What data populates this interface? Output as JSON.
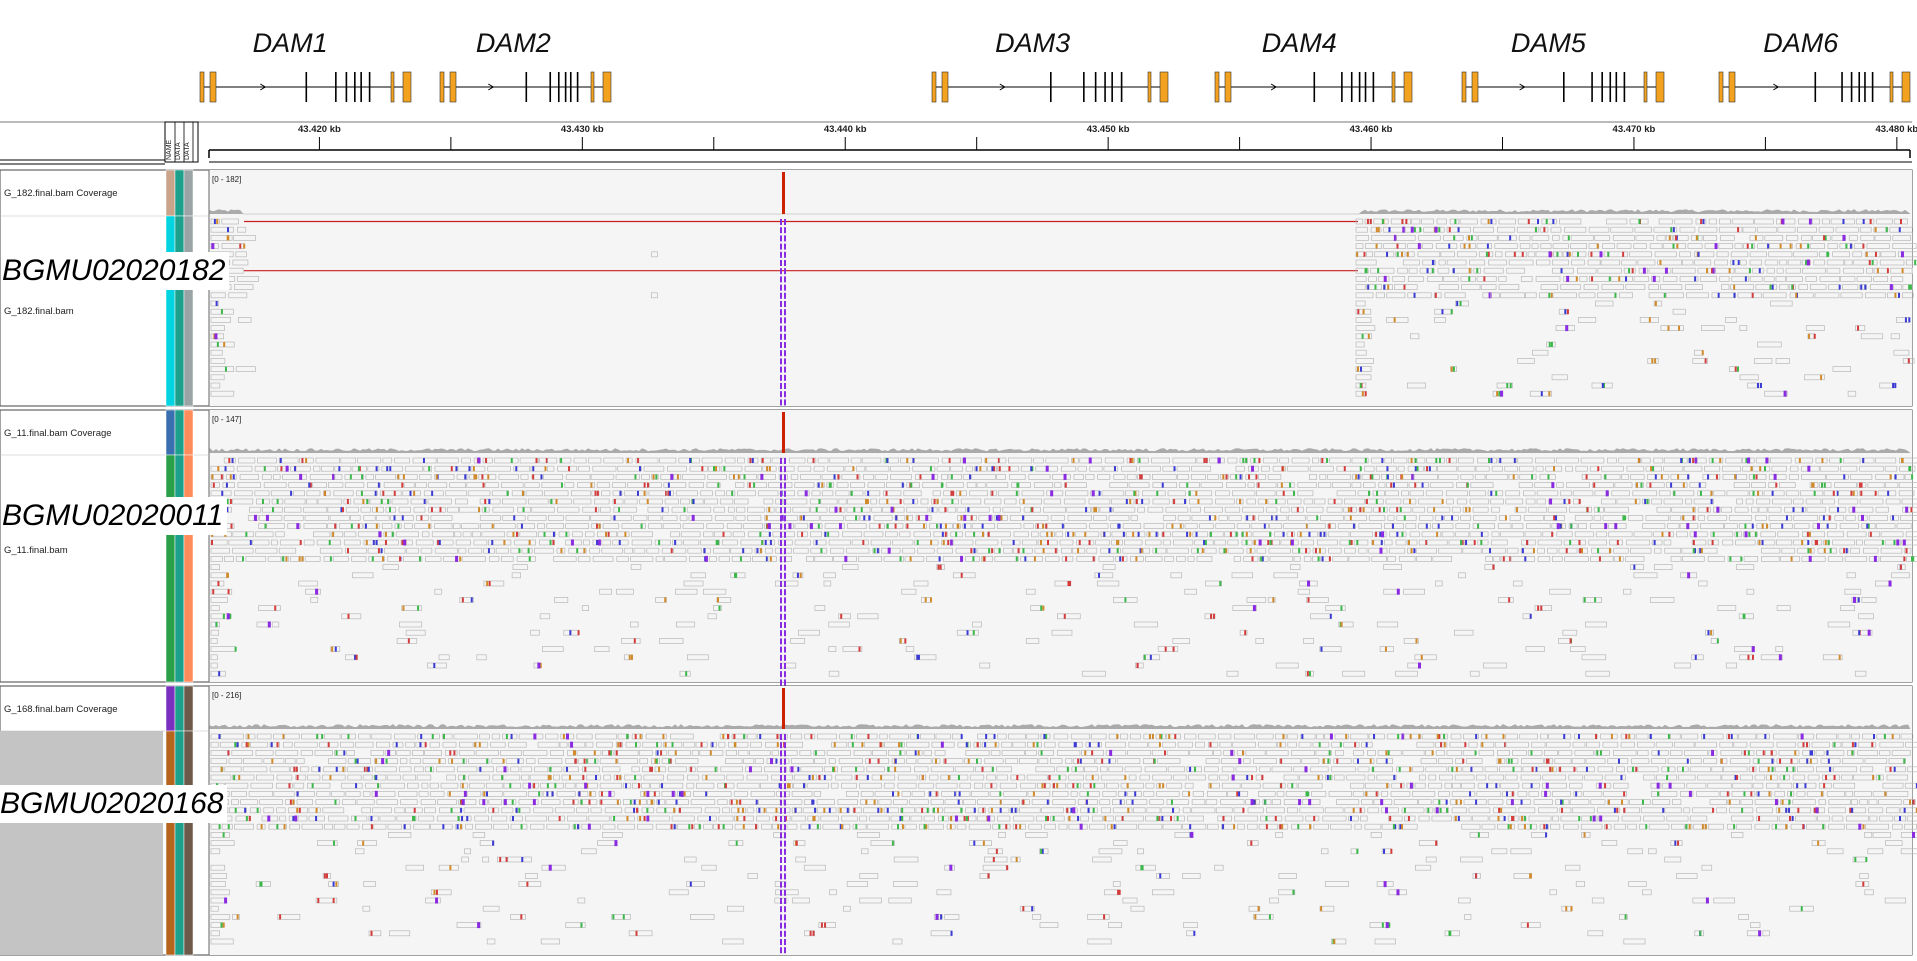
{
  "genes": [
    {
      "name": "DAM1",
      "start": 200,
      "end": 411
    },
    {
      "name": "DAM2",
      "start": 440,
      "end": 611
    },
    {
      "name": "DAM3",
      "start": 932,
      "end": 1168
    },
    {
      "name": "DAM4",
      "start": 1215,
      "end": 1412
    },
    {
      "name": "DAM5",
      "start": 1462,
      "end": 1664
    },
    {
      "name": "DAM6",
      "start": 1719,
      "end": 1910
    }
  ],
  "ruler": {
    "ticks": [
      "43.420 kb",
      "43.430 kb",
      "43.440 kb",
      "43.450 kb",
      "43.460 kb",
      "43.470 kb",
      "43.480 kb"
    ],
    "tick_kb": [
      43.42,
      43.43,
      43.44,
      43.45,
      43.46,
      43.47,
      43.48
    ]
  },
  "attribute_headers": [
    "NAME",
    "DATA",
    "DATA"
  ],
  "samples": [
    {
      "label": "BGMU02020182",
      "coverage_track": "G_182.final.bam Coverage",
      "alignment_track": "G_182.final.bam",
      "range": "[0 - 182]",
      "attr_colors_coverage": [
        "#c9a38a",
        "#1ea18c",
        "#9aa4a6"
      ],
      "attr_colors_alignment": [
        "#00d4e0",
        "#1ea18c",
        "#9aa4a6"
      ],
      "coverage_gap": true
    },
    {
      "label": "BGMU02020011",
      "coverage_track": "G_11.final.bam Coverage",
      "alignment_track": "G_11.final.bam",
      "range": "[0 - 147]",
      "attr_colors_coverage": [
        "#3a6fb0",
        "#1ea18c",
        "#ff8c5a"
      ],
      "attr_colors_alignment": [
        "#2aa04a",
        "#1ea18c",
        "#ff8c5a"
      ],
      "coverage_gap": false
    },
    {
      "label": "BGMU02020168",
      "coverage_track": "G_168.final.bam Coverage",
      "alignment_track": "G_168.final.bam",
      "range": "[0 - 216]",
      "attr_colors_coverage": [
        "#7b2fbe",
        "#1ea18c",
        "#6e5a4a"
      ],
      "attr_colors_alignment": [
        "#b5651d",
        "#1ea18c",
        "#6e5a4a"
      ],
      "coverage_gap": false
    }
  ],
  "colors": {
    "exon": "#f2a21e",
    "read": "#b8b8b8",
    "mismatch_a": "#3cb84a",
    "mismatch_c": "#3a3ad4",
    "mismatch_g": "#d18a2a",
    "mismatch_t": "#d43c3c",
    "insertion": "#8a2be2",
    "deletion_line": "#c81e1e",
    "coverage": "#aaaaaa",
    "peak": "#cc2200"
  }
}
